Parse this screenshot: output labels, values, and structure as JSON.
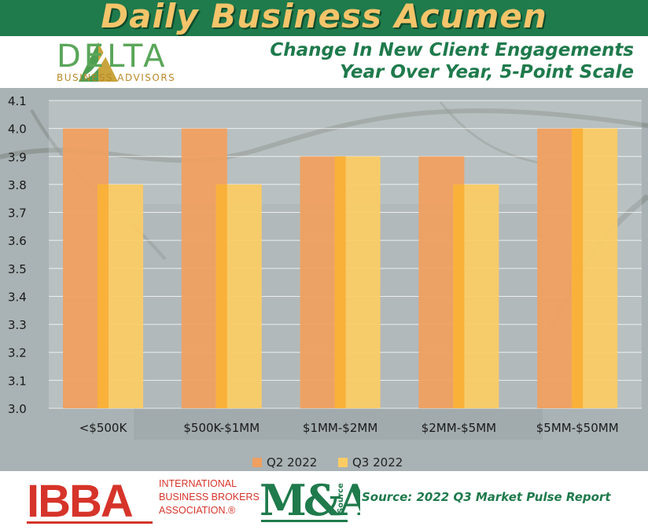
{
  "header": {
    "banner_title": "Daily Business Acumen",
    "subtitle_line1": "Change In New Client Engagements",
    "subtitle_line2": "Year Over Year, 5-Point Scale"
  },
  "logo": {
    "name": "DELTA",
    "tagline": "BUSINESS ADVISORS"
  },
  "footer": {
    "ibba_mark": "IBBA",
    "ibba_line1": "INTERNATIONAL",
    "ibba_line2": "BUSINESS BROKERS",
    "ibba_line3": "ASSOCIATION.®",
    "ma_mark": "M&A",
    "ma_source": "Source",
    "source_text": "Source: 2022 Q3 Market Pulse Report"
  },
  "colors": {
    "banner": "#1f7a4c",
    "title_gold": "#f4c46a",
    "q2": "#f0a060",
    "q3": "#fccc63",
    "overlap": "#f9b13a",
    "ibba_red": "#d6342a"
  },
  "chart_data": {
    "type": "bar",
    "categories": [
      "<$500K",
      "$500K-$1MM",
      "$1MM-$2MM",
      "$2MM-$5MM",
      "$5MM-$50MM"
    ],
    "series": [
      {
        "name": "Q2 2022",
        "values": [
          4.0,
          4.0,
          3.9,
          3.9,
          4.0
        ]
      },
      {
        "name": "Q3 2022",
        "values": [
          3.8,
          3.8,
          3.9,
          3.8,
          4.0
        ]
      }
    ],
    "yticks": [
      "3.0",
      "3.1",
      "3.2",
      "3.3",
      "3.4",
      "3.5",
      "3.6",
      "3.7",
      "3.8",
      "3.9",
      "4.0",
      "4.1"
    ],
    "ylim": [
      3.0,
      4.1
    ],
    "grid": true,
    "legend": "bottom"
  }
}
